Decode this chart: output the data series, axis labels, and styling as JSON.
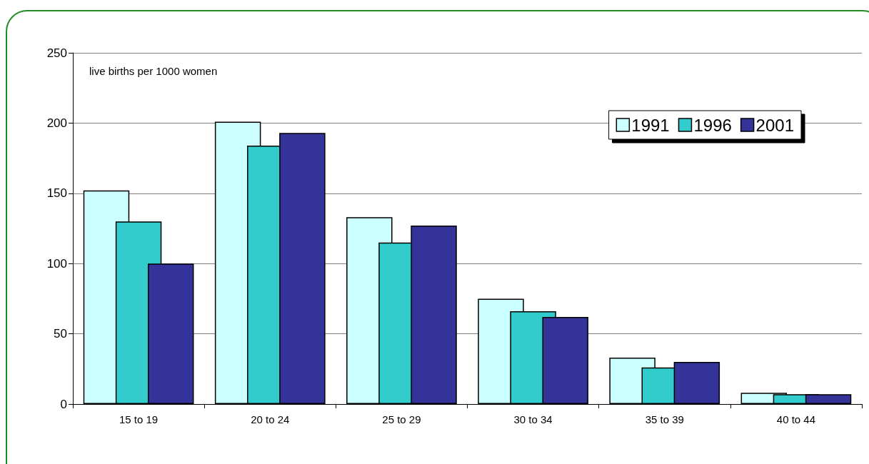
{
  "chart_data": {
    "type": "bar",
    "categories": [
      "15 to 19",
      "20 to 24",
      "25 to 29",
      "30 to 34",
      "35 to 39",
      "40 to 44"
    ],
    "series": [
      {
        "name": "1991",
        "color": "#ccffff",
        "values": [
          152,
          201,
          133,
          75,
          33,
          8
        ]
      },
      {
        "name": "1996",
        "color": "#33cccc",
        "values": [
          130,
          184,
          115,
          66,
          26,
          7
        ]
      },
      {
        "name": "2001",
        "color": "#333399",
        "values": [
          100,
          193,
          127,
          62,
          30,
          7
        ]
      }
    ],
    "annotations": [
      "live births per 1000 women"
    ],
    "ylim": [
      0,
      250
    ],
    "yticks": [
      0,
      50,
      100,
      150,
      200,
      250
    ],
    "grid": "y",
    "legend": "top right"
  }
}
